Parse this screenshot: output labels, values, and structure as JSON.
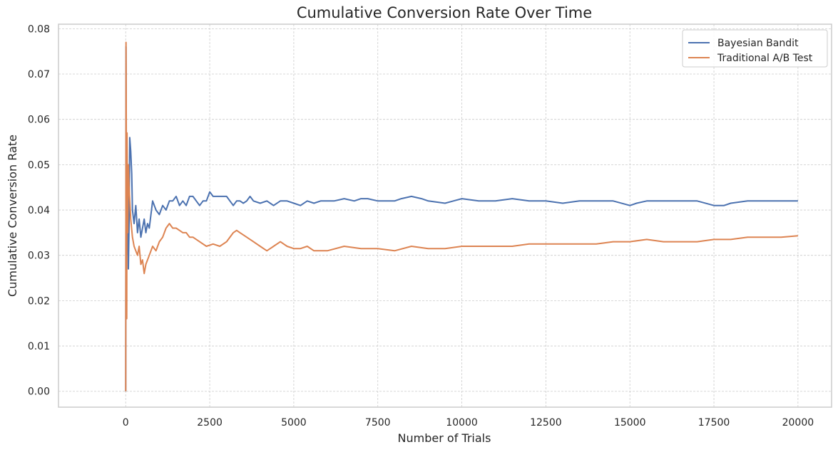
{
  "chart_data": {
    "type": "line",
    "title": "Cumulative Conversion Rate Over Time",
    "xlabel": "Number of Trials",
    "ylabel": "Cumulative Conversion Rate",
    "xlim": [
      -2000,
      21000
    ],
    "ylim": [
      -0.0035,
      0.081
    ],
    "xticks": [
      0,
      2500,
      5000,
      7500,
      10000,
      12500,
      15000,
      17500,
      20000
    ],
    "xtick_labels": [
      "0",
      "2500",
      "5000",
      "7500",
      "10000",
      "12500",
      "15000",
      "17500",
      "20000"
    ],
    "yticks": [
      0.0,
      0.01,
      0.02,
      0.03,
      0.04,
      0.05,
      0.06,
      0.07,
      0.08
    ],
    "ytick_labels": [
      "0.00",
      "0.01",
      "0.02",
      "0.03",
      "0.04",
      "0.05",
      "0.06",
      "0.07",
      "0.08"
    ],
    "grid": true,
    "legend_position": "top-right",
    "series": [
      {
        "name": "Bayesian Bandit",
        "color": "#4c72b0",
        "x": [
          0,
          10,
          20,
          30,
          50,
          80,
          100,
          120,
          150,
          180,
          200,
          250,
          300,
          350,
          400,
          450,
          500,
          550,
          600,
          650,
          700,
          800,
          900,
          1000,
          1100,
          1200,
          1300,
          1400,
          1500,
          1600,
          1700,
          1800,
          1900,
          2000,
          2100,
          2200,
          2300,
          2400,
          2500,
          2600,
          2700,
          2800,
          2900,
          3000,
          3100,
          3200,
          3300,
          3400,
          3500,
          3600,
          3700,
          3800,
          4000,
          4200,
          4400,
          4600,
          4800,
          5000,
          5200,
          5400,
          5600,
          5800,
          6000,
          6200,
          6500,
          6800,
          7000,
          7200,
          7500,
          7800,
          8000,
          8200,
          8500,
          8800,
          9000,
          9500,
          10000,
          10500,
          11000,
          11500,
          12000,
          12500,
          13000,
          13500,
          14000,
          14500,
          15000,
          15200,
          15500,
          16000,
          16500,
          17000,
          17500,
          17800,
          18000,
          18500,
          19000,
          19500,
          20000
        ],
        "y": [
          0.0,
          0.076,
          0.045,
          0.03,
          0.05,
          0.027,
          0.037,
          0.056,
          0.053,
          0.048,
          0.04,
          0.037,
          0.041,
          0.035,
          0.038,
          0.034,
          0.036,
          0.038,
          0.035,
          0.037,
          0.036,
          0.042,
          0.04,
          0.039,
          0.041,
          0.04,
          0.042,
          0.042,
          0.043,
          0.041,
          0.042,
          0.041,
          0.043,
          0.043,
          0.042,
          0.041,
          0.042,
          0.042,
          0.044,
          0.043,
          0.043,
          0.043,
          0.043,
          0.043,
          0.042,
          0.041,
          0.042,
          0.042,
          0.0415,
          0.042,
          0.043,
          0.042,
          0.0415,
          0.042,
          0.041,
          0.042,
          0.042,
          0.0415,
          0.041,
          0.042,
          0.0415,
          0.042,
          0.042,
          0.042,
          0.0425,
          0.042,
          0.0425,
          0.0425,
          0.042,
          0.042,
          0.042,
          0.0425,
          0.043,
          0.0425,
          0.042,
          0.0415,
          0.0425,
          0.042,
          0.042,
          0.0425,
          0.042,
          0.042,
          0.0415,
          0.042,
          0.042,
          0.042,
          0.041,
          0.0415,
          0.042,
          0.042,
          0.042,
          0.042,
          0.041,
          0.041,
          0.0415,
          0.042,
          0.042,
          0.042,
          0.042
        ]
      },
      {
        "name": "Traditional A/B Test",
        "color": "#dd8452",
        "x": [
          0,
          10,
          20,
          30,
          40,
          50,
          60,
          80,
          100,
          150,
          200,
          250,
          300,
          350,
          400,
          450,
          500,
          550,
          600,
          700,
          800,
          900,
          1000,
          1100,
          1200,
          1300,
          1400,
          1500,
          1600,
          1700,
          1800,
          1900,
          2000,
          2200,
          2400,
          2600,
          2800,
          3000,
          3200,
          3300,
          3400,
          3600,
          3800,
          4000,
          4200,
          4400,
          4600,
          4800,
          5000,
          5200,
          5400,
          5600,
          5800,
          6000,
          6500,
          7000,
          7500,
          8000,
          8500,
          9000,
          9500,
          10000,
          10500,
          11000,
          11500,
          12000,
          12500,
          13000,
          13500,
          14000,
          14500,
          15000,
          15500,
          16000,
          16500,
          17000,
          17500,
          18000,
          18500,
          19000,
          19500,
          20000
        ],
        "y": [
          0.0,
          0.077,
          0.052,
          0.016,
          0.057,
          0.045,
          0.035,
          0.05,
          0.045,
          0.038,
          0.034,
          0.032,
          0.031,
          0.03,
          0.032,
          0.028,
          0.029,
          0.026,
          0.028,
          0.03,
          0.032,
          0.031,
          0.033,
          0.034,
          0.036,
          0.037,
          0.036,
          0.036,
          0.0355,
          0.035,
          0.035,
          0.034,
          0.034,
          0.033,
          0.032,
          0.0325,
          0.032,
          0.033,
          0.035,
          0.0355,
          0.035,
          0.034,
          0.033,
          0.032,
          0.031,
          0.032,
          0.033,
          0.032,
          0.0315,
          0.0315,
          0.032,
          0.031,
          0.031,
          0.031,
          0.032,
          0.0315,
          0.0315,
          0.031,
          0.032,
          0.0315,
          0.0315,
          0.032,
          0.032,
          0.032,
          0.032,
          0.0325,
          0.0325,
          0.0325,
          0.0325,
          0.0325,
          0.033,
          0.033,
          0.0335,
          0.033,
          0.033,
          0.033,
          0.0335,
          0.0335,
          0.034,
          0.034,
          0.034,
          0.0343
        ]
      }
    ]
  }
}
